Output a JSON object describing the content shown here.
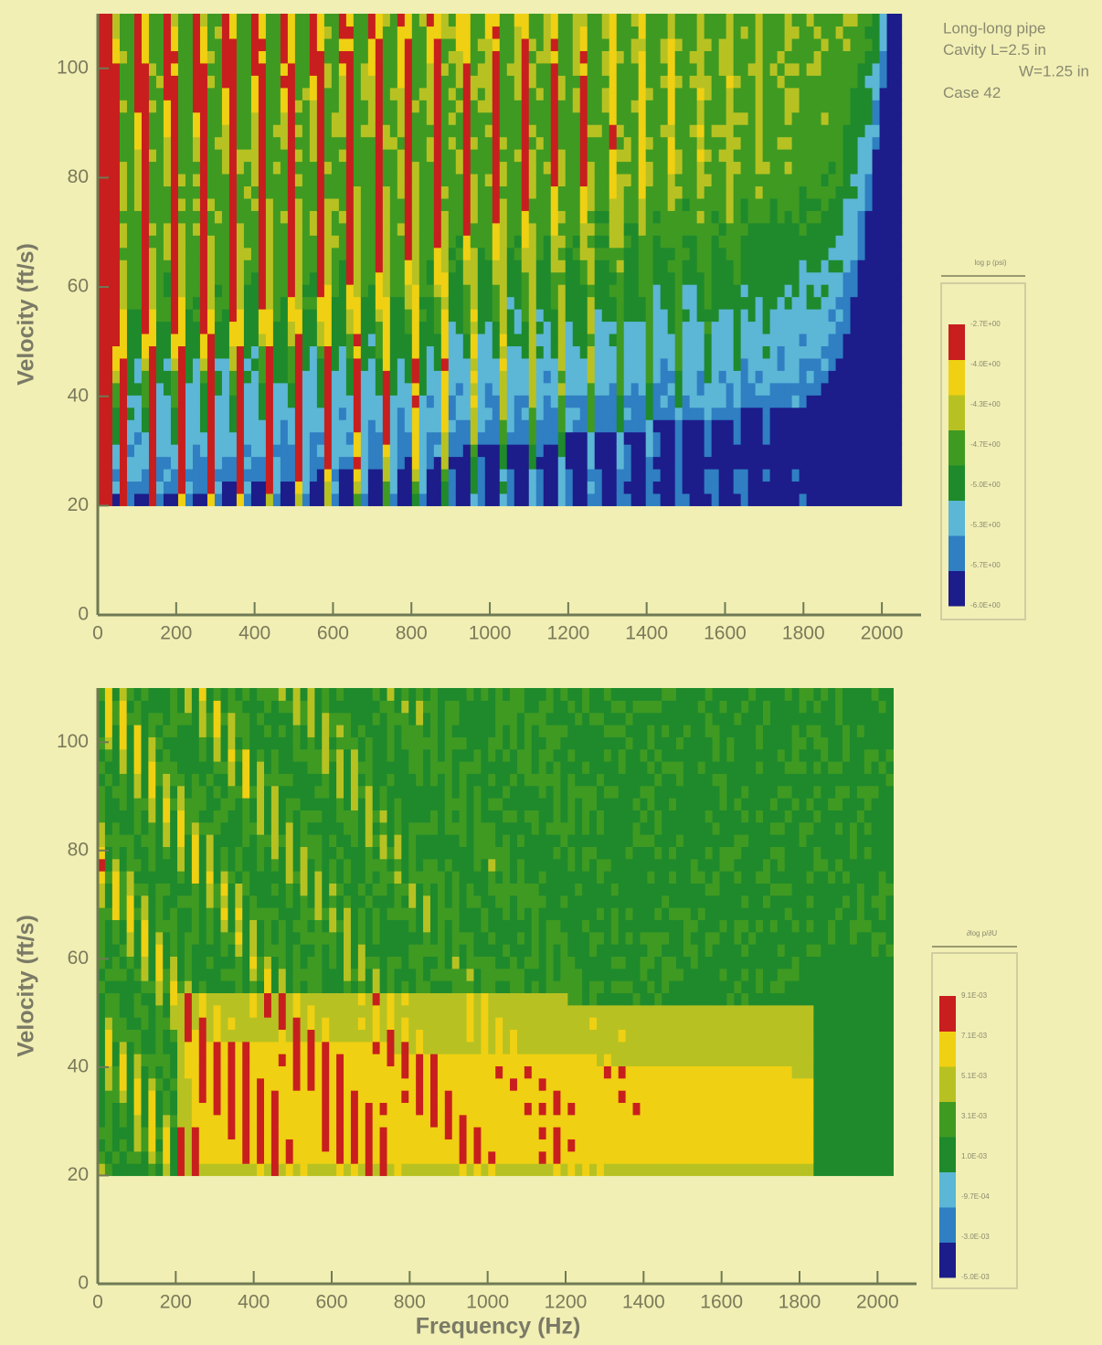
{
  "chart_data": [
    {
      "type": "heatmap",
      "y_label": "Velocity (ft/s)",
      "xlim": [
        0,
        2100
      ],
      "ylim": [
        0,
        110
      ],
      "xticks": [
        0,
        200,
        400,
        600,
        800,
        1000,
        1200,
        1400,
        1600,
        1800,
        2000
      ],
      "yticks": [
        0,
        20,
        40,
        60,
        80,
        100
      ],
      "annotations": [
        "Long-long pipe",
        "Cavity L=2.5 in",
        "W=1.25 in",
        "Case 42"
      ],
      "colorbar": {
        "title": "log p (psi)",
        "labels": [
          "-2.7E+00",
          "-4.0E+00",
          "-4.3E+00",
          "-4.7E+00",
          "-5.0E+00",
          "-5.3E+00",
          "-5.7E+00",
          "-6.0E+00"
        ],
        "colors": [
          "#1c1c8a",
          "#2f7fc2",
          "#5cb6d6",
          "#1e8a2c",
          "#3f9a22",
          "#b7c222",
          "#f0d012",
          "#c81e1e"
        ]
      }
    },
    {
      "type": "heatmap",
      "y_label": "Velocity (ft/s)",
      "x_label": "Frequency (Hz)",
      "xlim": [
        0,
        2100
      ],
      "ylim": [
        0,
        110
      ],
      "xticks": [
        0,
        200,
        400,
        600,
        800,
        1000,
        1200,
        1400,
        1600,
        1800,
        2000
      ],
      "yticks": [
        0,
        20,
        40,
        60,
        80,
        100
      ],
      "colorbar": {
        "title": "∂log p/∂U",
        "labels": [
          "9.1E-03",
          "7.1E-03",
          "5.1E-03",
          "3.1E-03",
          "1.0E-03",
          "-9.7E-04",
          "-3.0E-03",
          "-5.0E-03"
        ],
        "colors": [
          "#1c1c8a",
          "#2f7fc2",
          "#5cb6d6",
          "#1e8a2c",
          "#3f9a22",
          "#b7c222",
          "#f0d012",
          "#c81e1e"
        ]
      }
    }
  ]
}
